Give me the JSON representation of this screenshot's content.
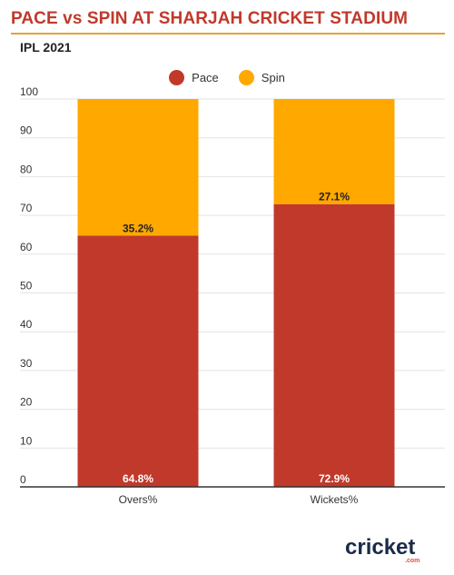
{
  "header": {
    "title": "PACE vs SPIN AT SHARJAH CRICKET STADIUM",
    "subtitle": "IPL 2021"
  },
  "colors": {
    "pace": "#c0392b",
    "spin": "#ffa800",
    "title": "#c0392b"
  },
  "logo": {
    "text": "cricket",
    "suffix": ".com"
  },
  "chart_data": {
    "type": "bar",
    "stacked": true,
    "categories": [
      "Overs%",
      "Wickets%"
    ],
    "series": [
      {
        "name": "Pace",
        "values": [
          64.8,
          72.9
        ],
        "labels": [
          "64.8%",
          "72.9%"
        ],
        "color": "#c0392b"
      },
      {
        "name": "Spin",
        "values": [
          35.2,
          27.1
        ],
        "labels": [
          "35.2%",
          "27.1%"
        ],
        "color": "#ffa800"
      }
    ],
    "yticks": [
      0,
      10,
      20,
      30,
      40,
      50,
      60,
      70,
      80,
      90,
      100
    ],
    "ylim": [
      0,
      100
    ],
    "grid": true,
    "legend": "top-center"
  }
}
